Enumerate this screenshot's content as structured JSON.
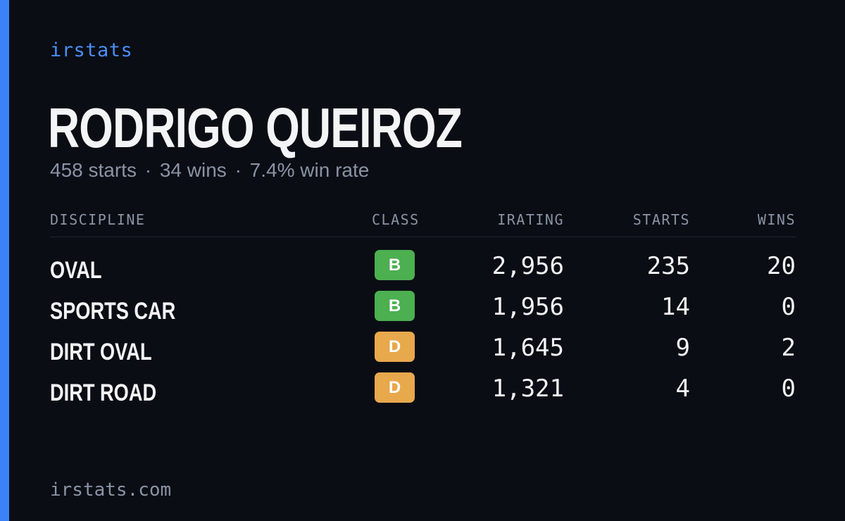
{
  "brand": "irstats",
  "driver": {
    "name": "RODRIGO QUEIROZ",
    "starts_text": "458 starts",
    "wins_text": "34 wins",
    "win_rate_text": "7.4% win rate",
    "separator": "·"
  },
  "table": {
    "headers": {
      "discipline": "DISCIPLINE",
      "class": "CLASS",
      "irating": "IRATING",
      "starts": "STARTS",
      "wins": "WINS"
    },
    "rows": [
      {
        "discipline": "OVAL",
        "class": "B",
        "class_color": "#4caf50",
        "irating": "2,956",
        "starts": "235",
        "wins": "20"
      },
      {
        "discipline": "SPORTS CAR",
        "class": "B",
        "class_color": "#4caf50",
        "irating": "1,956",
        "starts": "14",
        "wins": "0"
      },
      {
        "discipline": "DIRT OVAL",
        "class": "D",
        "class_color": "#e8a84c",
        "irating": "1,645",
        "starts": "9",
        "wins": "2"
      },
      {
        "discipline": "DIRT ROAD",
        "class": "D",
        "class_color": "#e8a84c",
        "irating": "1,321",
        "starts": "4",
        "wins": "0"
      }
    ]
  },
  "footer": {
    "url": "irstats.com"
  },
  "colors": {
    "accent": "#3b82f6",
    "background": "#0a0d14",
    "text_primary": "#f3f4f6",
    "text_muted": "#8b93a5"
  }
}
